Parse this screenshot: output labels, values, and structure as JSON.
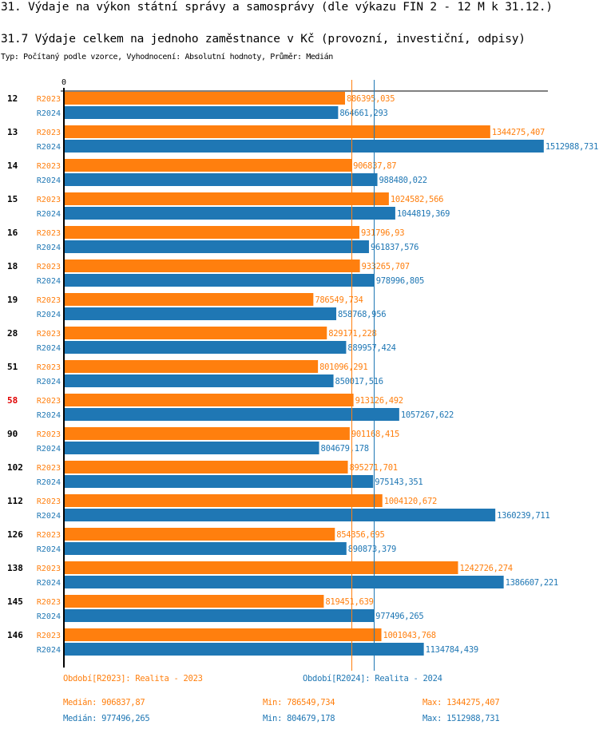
{
  "header": {
    "title": "31. Výdaje na výkon státní správy a samosprávy (dle výkazu FIN 2 - 12 M k 31.12.)",
    "subtitle": "31.7 Výdaje celkem na jednoho zaměstnance v Kč (provozní, investiční, odpisy)",
    "info": "Typ: Počítaný podle vzorce, Vyhodnocení: Absolutní hodnoty, Průměr: Medián"
  },
  "chart_data": {
    "type": "bar",
    "orientation": "horizontal",
    "title": "31.7 Výdaje celkem na jednoho zaměstnance v Kč (provozní, investiční, odpisy)",
    "x_tick_labels": [
      "0"
    ],
    "xlim": [
      0,
      1530000
    ],
    "categories": [
      "12",
      "13",
      "14",
      "15",
      "16",
      "18",
      "19",
      "28",
      "51",
      "58",
      "90",
      "102",
      "112",
      "126",
      "138",
      "145",
      "146"
    ],
    "highlighted_category": "58",
    "series": [
      {
        "name": "R2023",
        "legend": "Období[R2023]: Realita - 2023",
        "color": "#ff7f0e",
        "values": [
          886395.035,
          1344275.407,
          906837.87,
          1024582.566,
          931796.93,
          933265.707,
          786549.734,
          829171.228,
          801096.291,
          913126.492,
          901168.415,
          895271.701,
          1004120.672,
          854356.695,
          1242726.274,
          819451.639,
          1001043.768
        ],
        "labels": [
          "886395,035",
          "1344275,407",
          "906837,87",
          "1024582,566",
          "931796,93",
          "933265,707",
          "786549,734",
          "829171,228",
          "801096,291",
          "913126,492",
          "901168,415",
          "895271,701",
          "1004120,672",
          "854356,695",
          "1242726,274",
          "819451,639",
          "1001043,768"
        ],
        "median": 906837.87,
        "stats": {
          "median": "Medián: 906837,87",
          "min": "Min: 786549,734",
          "max": "Max: 1344275,407"
        }
      },
      {
        "name": "R2024",
        "legend": "Období[R2024]: Realita - 2024",
        "color": "#1f77b4",
        "values": [
          864661.293,
          1512988.731,
          988480.022,
          1044819.369,
          961837.576,
          978996.805,
          858768.956,
          889957.424,
          850017.516,
          1057267.622,
          804679.178,
          975143.351,
          1360239.711,
          890873.379,
          1386607.221,
          977496.265,
          1134784.439
        ],
        "labels": [
          "864661,293",
          "1512988,731",
          "988480,022",
          "1044819,369",
          "961837,576",
          "978996,805",
          "858768,956",
          "889957,424",
          "850017,516",
          "1057267,622",
          "804679,178",
          "975143,351",
          "1360239,711",
          "890873,379",
          "1386607,221",
          "977496,265",
          "1134784,439"
        ],
        "median": 977496.265,
        "stats": {
          "median": "Medián: 977496,265",
          "min": "Min: 804679,178",
          "max": "Max: 1512988,731"
        }
      }
    ]
  },
  "colors": {
    "highlight": "#e00000",
    "axis": "#000000"
  }
}
